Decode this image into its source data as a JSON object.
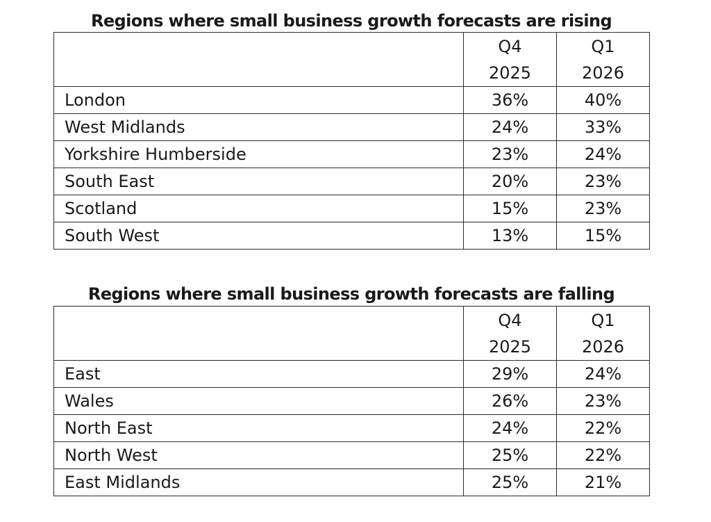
{
  "tables": [
    {
      "title": "Regions where small business growth forecasts are rising",
      "columns": [
        {
          "period": "Q4",
          "year": "2025"
        },
        {
          "period": "Q1",
          "year": "2026"
        }
      ],
      "rows": [
        {
          "region": "London",
          "q4_2025": "36%",
          "q1_2026": "40%"
        },
        {
          "region": "West Midlands",
          "q4_2025": "24%",
          "q1_2026": "33%"
        },
        {
          "region": "Yorkshire Humberside",
          "q4_2025": "23%",
          "q1_2026": "24%"
        },
        {
          "region": "South East",
          "q4_2025": "20%",
          "q1_2026": "23%"
        },
        {
          "region": "Scotland",
          "q4_2025": "15%",
          "q1_2026": "23%"
        },
        {
          "region": "South West",
          "q4_2025": "13%",
          "q1_2026": "15%"
        }
      ]
    },
    {
      "title": "Regions where small business growth forecasts are falling",
      "columns": [
        {
          "period": "Q4",
          "year": "2025"
        },
        {
          "period": "Q1",
          "year": "2026"
        }
      ],
      "rows": [
        {
          "region": "East",
          "q4_2025": "29%",
          "q1_2026": "24%"
        },
        {
          "region": "Wales",
          "q4_2025": "26%",
          "q1_2026": "23%"
        },
        {
          "region": "North East",
          "q4_2025": "24%",
          "q1_2026": "22%"
        },
        {
          "region": "North West",
          "q4_2025": "25%",
          "q1_2026": "22%"
        },
        {
          "region": "East Midlands",
          "q4_2025": "25%",
          "q1_2026": "21%"
        }
      ]
    }
  ]
}
